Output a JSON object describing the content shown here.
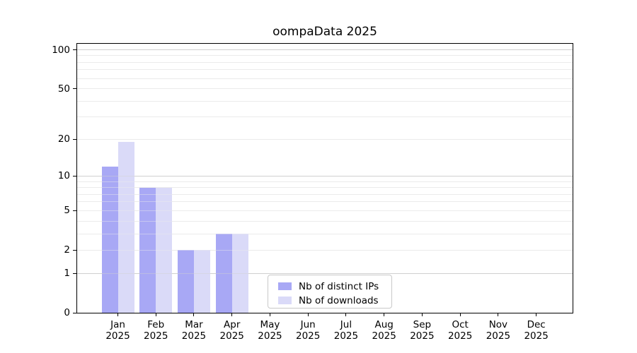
{
  "chart_data": {
    "type": "bar",
    "title": "oompaData 2025",
    "year": "2025",
    "categories": [
      "Jan",
      "Feb",
      "Mar",
      "Apr",
      "May",
      "Jun",
      "Jul",
      "Aug",
      "Sep",
      "Oct",
      "Nov",
      "Dec"
    ],
    "series": [
      {
        "name": "Nb of distinct IPs",
        "color": "#a8a8f5",
        "values": [
          12,
          8,
          2,
          3,
          0,
          0,
          0,
          0,
          0,
          0,
          0,
          0
        ]
      },
      {
        "name": "Nb of downloads",
        "color": "#dadaf8",
        "values": [
          19,
          8,
          2,
          3,
          0,
          0,
          0,
          0,
          0,
          0,
          0,
          0
        ]
      }
    ],
    "xlabel": "",
    "ylabel": "",
    "yscale": "log1p",
    "ylim": [
      0,
      100
    ],
    "yticks": [
      0,
      1,
      2,
      5,
      10,
      20,
      50,
      100
    ],
    "minor_gridlines": [
      2,
      3,
      4,
      5,
      6,
      7,
      8,
      9,
      20,
      30,
      40,
      50,
      60,
      70,
      80,
      90
    ],
    "major_gridlines": [
      1,
      10,
      100
    ],
    "grid": true,
    "grid_color_minor": "#ececec",
    "grid_color_major": "#d0d0d0",
    "axis_color": "#000000",
    "legend_position": "lower-center-inside",
    "legend_border_color": "#c9c9c9"
  }
}
